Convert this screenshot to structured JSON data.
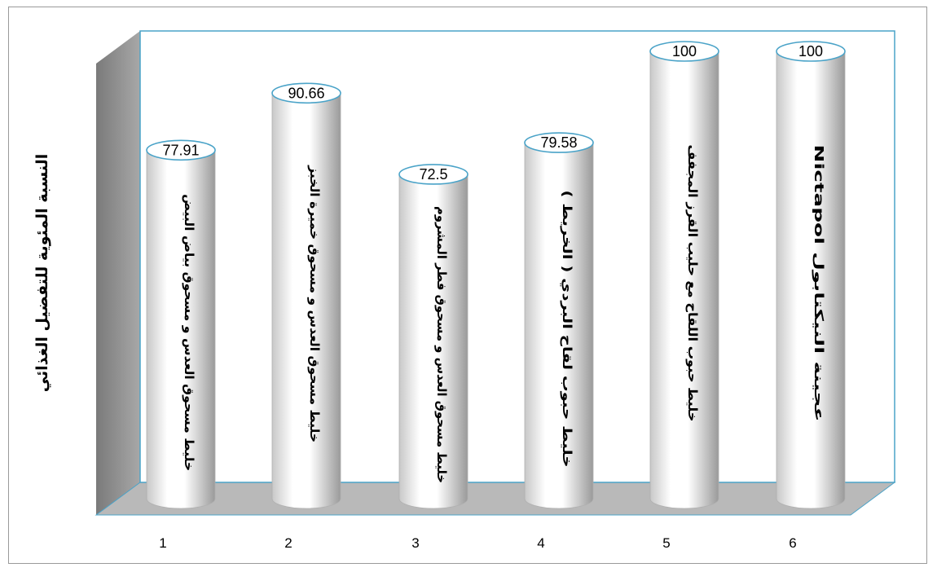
{
  "chart_data": {
    "type": "bar",
    "categories": [
      "1",
      "2",
      "3",
      "4",
      "5",
      "6"
    ],
    "values": [
      77.91,
      90.66,
      72.5,
      79.58,
      100,
      100
    ],
    "value_labels": [
      "77.91",
      "90.66",
      "72.5",
      "79.58",
      "100",
      "100"
    ],
    "bar_labels": [
      "خليط مسحوق العدس و مسحوق بياض البيض",
      "خليط مسحوق العدس و مسحوق خميرة الخبز",
      "خليط مسحوق العدس و مسحوق فطر المشروم",
      "خليط حبوب لقاح البردي ( الخريط )",
      "خليط حبوب اللقاح مع حليب القرز المجفف",
      "عجينة النيكتابول Nictapol"
    ],
    "title": "",
    "xlabel": "",
    "ylabel": "النسبة المئوية للتفضيل الغذائي",
    "ylim": [
      0,
      100
    ],
    "grid": false,
    "legend": "none",
    "style": "3d-cylinder",
    "colors": {
      "bar_fill": "#ffffff",
      "bar_shade": "#9a9a9a",
      "bar_outline": "#4aa3c8",
      "back_wall": "#ffffff",
      "side_wall": "#8c8c8c",
      "floor": "#b8b8b8"
    }
  }
}
